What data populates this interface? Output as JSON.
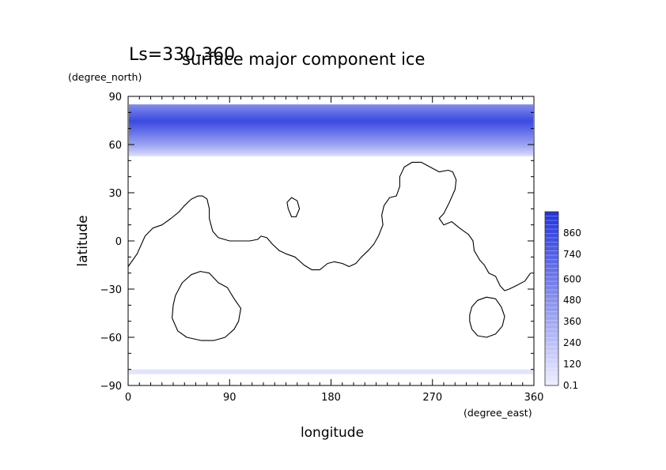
{
  "chart_data": {
    "type": "heatmap",
    "title": "surface major component ice",
    "subtitle": "Ls=330-360",
    "xlabel": "longitude",
    "ylabel": "latitude",
    "x_units": "(degree_east)",
    "y_units": "(degree_north)",
    "xlim": [
      0,
      360
    ],
    "ylim": [
      -90,
      90
    ],
    "x_ticks": [
      "0",
      "90",
      "180",
      "270",
      "360"
    ],
    "y_ticks": [
      "90",
      "60",
      "30",
      "0",
      "−30",
      "−60",
      "−90"
    ],
    "colorbar": {
      "labels": [
        "0.1",
        "120",
        "240",
        "360",
        "480",
        "600",
        "740",
        "860"
      ],
      "label_values": [
        0.1,
        120,
        240,
        360,
        480,
        600,
        740,
        860
      ],
      "max": 980,
      "color_low": "#eeeeff",
      "color_high": "#2233dd"
    },
    "ice_caps": [
      {
        "name": "north",
        "lat_edge": 53,
        "lat_pole": 85,
        "lat_max": 75,
        "max_value": 860,
        "edge_value": 60
      },
      {
        "name": "south",
        "lat_edge": -83,
        "lat_pole": -80,
        "value": 60
      }
    ],
    "coastlines": [
      {
        "name": "continent",
        "points": [
          [
            0,
            -16
          ],
          [
            8,
            -8
          ],
          [
            15,
            3
          ],
          [
            22,
            8
          ],
          [
            30,
            10
          ],
          [
            38,
            14
          ],
          [
            45,
            18
          ],
          [
            50,
            22
          ],
          [
            56,
            26
          ],
          [
            62,
            28
          ],
          [
            66,
            28
          ],
          [
            70,
            26
          ],
          [
            72,
            20
          ],
          [
            72,
            14
          ],
          [
            75,
            6
          ],
          [
            80,
            2
          ],
          [
            90,
            0
          ],
          [
            100,
            0
          ],
          [
            108,
            0
          ],
          [
            115,
            1
          ],
          [
            118,
            3
          ],
          [
            123,
            2
          ],
          [
            128,
            -2
          ],
          [
            134,
            -6
          ],
          [
            140,
            -8
          ],
          [
            148,
            -10
          ],
          [
            156,
            -15
          ],
          [
            163,
            -18
          ],
          [
            170,
            -18
          ],
          [
            177,
            -14
          ],
          [
            183,
            -13
          ],
          [
            190,
            -14
          ],
          [
            196,
            -16
          ],
          [
            202,
            -14
          ],
          [
            207,
            -10
          ],
          [
            213,
            -6
          ],
          [
            218,
            -2
          ],
          [
            222,
            3
          ],
          [
            226,
            10
          ],
          [
            225,
            16
          ],
          [
            227,
            22
          ],
          [
            232,
            27
          ],
          [
            238,
            28
          ],
          [
            241,
            34
          ],
          [
            241,
            40
          ],
          [
            245,
            46
          ],
          [
            252,
            49
          ],
          [
            260,
            49
          ],
          [
            268,
            46
          ],
          [
            276,
            43
          ],
          [
            284,
            44
          ],
          [
            288,
            43
          ],
          [
            291,
            38
          ],
          [
            290,
            32
          ],
          [
            285,
            24
          ],
          [
            280,
            17
          ],
          [
            276,
            14
          ],
          [
            280,
            10
          ],
          [
            287,
            12
          ],
          [
            294,
            8
          ],
          [
            302,
            4
          ],
          [
            306,
            0
          ],
          [
            307,
            -6
          ],
          [
            312,
            -12
          ],
          [
            316,
            -15
          ],
          [
            320,
            -20
          ],
          [
            326,
            -22
          ],
          [
            330,
            -28
          ],
          [
            334,
            -31
          ],
          [
            338,
            -30
          ],
          [
            344,
            -28
          ],
          [
            352,
            -25
          ],
          [
            357,
            -20
          ]
        ]
      },
      {
        "name": "island",
        "points": [
          [
            141,
            24
          ],
          [
            145,
            27
          ],
          [
            150,
            25
          ],
          [
            152,
            20
          ],
          [
            149,
            15
          ],
          [
            145,
            15
          ],
          [
            142,
            20
          ],
          [
            141,
            24
          ]
        ]
      },
      {
        "name": "crater-west",
        "points": [
          [
            42,
            -34
          ],
          [
            48,
            -26
          ],
          [
            56,
            -21
          ],
          [
            64,
            -19
          ],
          [
            72,
            -20
          ],
          [
            80,
            -26
          ],
          [
            88,
            -29
          ],
          [
            94,
            -36
          ],
          [
            100,
            -42
          ],
          [
            98,
            -50
          ],
          [
            94,
            -55
          ],
          [
            86,
            -60
          ],
          [
            76,
            -62
          ],
          [
            65,
            -62
          ],
          [
            52,
            -60
          ],
          [
            44,
            -56
          ],
          [
            39,
            -48
          ],
          [
            40,
            -40
          ],
          [
            42,
            -34
          ]
        ]
      },
      {
        "name": "crater-east",
        "points": [
          [
            303,
            -46
          ],
          [
            305,
            -41
          ],
          [
            310,
            -37
          ],
          [
            318,
            -35
          ],
          [
            326,
            -36
          ],
          [
            331,
            -41
          ],
          [
            334,
            -47
          ],
          [
            332,
            -53
          ],
          [
            326,
            -58
          ],
          [
            318,
            -60
          ],
          [
            310,
            -59
          ],
          [
            305,
            -55
          ],
          [
            303,
            -50
          ],
          [
            303,
            -46
          ]
        ]
      }
    ]
  }
}
